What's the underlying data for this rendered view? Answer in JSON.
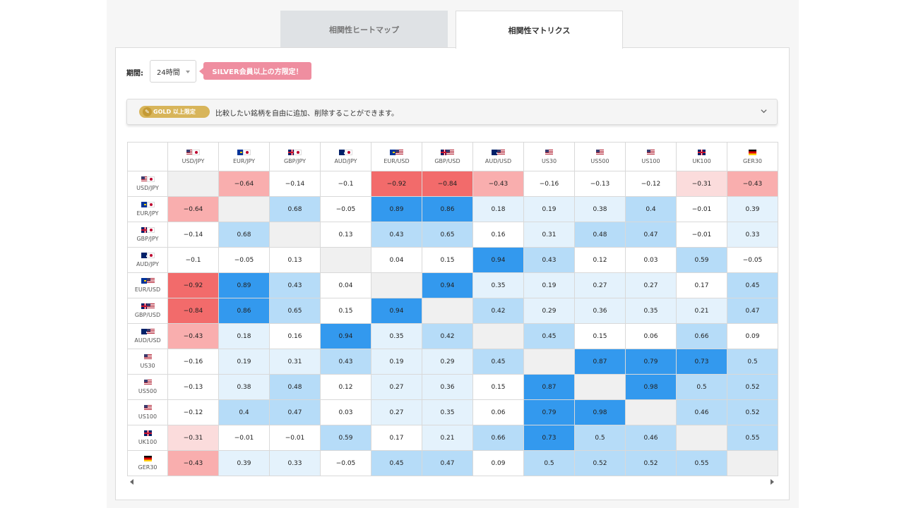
{
  "tabs": {
    "heatmap": "相関性ヒートマップ",
    "matrix": "相関性マトリクス"
  },
  "period": {
    "label": "期間:",
    "value": "24時間"
  },
  "silver_notice": "SILVER会員以上の方限定！",
  "gold": {
    "badge": "GOLD 以上限定",
    "text": "比較したい銘柄を自由に追加、削除することができます。"
  },
  "colors": {
    "strong_negative": "#f26b6b",
    "mid_negative": "#f9aeae",
    "weak_negative": "#fbdcdc",
    "strong_positive": "#3399ee",
    "mid_positive": "#b6dcf8",
    "weak_positive": "#e4f2fc",
    "diagonal": "#f0f0f0"
  },
  "matrix": {
    "symbols": [
      {
        "label": "USD/JPY",
        "flags": [
          "us",
          "jp"
        ]
      },
      {
        "label": "EUR/JPY",
        "flags": [
          "eu",
          "jp"
        ]
      },
      {
        "label": "GBP/JPY",
        "flags": [
          "gb",
          "jp"
        ]
      },
      {
        "label": "AUD/JPY",
        "flags": [
          "au",
          "jp"
        ]
      },
      {
        "label": "EUR/USD",
        "flags": [
          "eu",
          "us"
        ]
      },
      {
        "label": "GBP/USD",
        "flags": [
          "gb",
          "us"
        ]
      },
      {
        "label": "AUD/USD",
        "flags": [
          "au",
          "us"
        ]
      },
      {
        "label": "US30",
        "flags": [
          "us"
        ]
      },
      {
        "label": "US500",
        "flags": [
          "us"
        ]
      },
      {
        "label": "US100",
        "flags": [
          "us"
        ]
      },
      {
        "label": "UK100",
        "flags": [
          "gb"
        ]
      },
      {
        "label": "GER30",
        "flags": [
          "de"
        ]
      }
    ],
    "values": [
      [
        null,
        "−0.64",
        "−0.14",
        "−0.1",
        "−0.92",
        "−0.84",
        "−0.43",
        "−0.16",
        "−0.13",
        "−0.12",
        "−0.31",
        "−0.43"
      ],
      [
        "−0.64",
        null,
        "0.68",
        "−0.05",
        "0.89",
        "0.86",
        "0.18",
        "0.19",
        "0.38",
        "0.4",
        "−0.01",
        "0.39"
      ],
      [
        "−0.14",
        "0.68",
        null,
        "0.13",
        "0.43",
        "0.65",
        "0.16",
        "0.31",
        "0.48",
        "0.47",
        "−0.01",
        "0.33"
      ],
      [
        "−0.1",
        "−0.05",
        "0.13",
        null,
        "0.04",
        "0.15",
        "0.94",
        "0.43",
        "0.12",
        "0.03",
        "0.59",
        "−0.05"
      ],
      [
        "−0.92",
        "0.89",
        "0.43",
        "0.04",
        null,
        "0.94",
        "0.35",
        "0.19",
        "0.27",
        "0.27",
        "0.17",
        "0.45"
      ],
      [
        "−0.84",
        "0.86",
        "0.65",
        "0.15",
        "0.94",
        null,
        "0.42",
        "0.29",
        "0.36",
        "0.35",
        "0.21",
        "0.47"
      ],
      [
        "−0.43",
        "0.18",
        "0.16",
        "0.94",
        "0.35",
        "0.42",
        null,
        "0.45",
        "0.15",
        "0.06",
        "0.66",
        "0.09"
      ],
      [
        "−0.16",
        "0.19",
        "0.31",
        "0.43",
        "0.19",
        "0.29",
        "0.45",
        null,
        "0.87",
        "0.79",
        "0.73",
        "0.5"
      ],
      [
        "−0.13",
        "0.38",
        "0.48",
        "0.12",
        "0.27",
        "0.36",
        "0.15",
        "0.87",
        null,
        "0.98",
        "0.5",
        "0.52"
      ],
      [
        "−0.12",
        "0.4",
        "0.47",
        "0.03",
        "0.27",
        "0.35",
        "0.06",
        "0.79",
        "0.98",
        null,
        "0.46",
        "0.52"
      ],
      [
        "−0.31",
        "−0.01",
        "−0.01",
        "0.59",
        "0.17",
        "0.21",
        "0.66",
        "0.73",
        "0.5",
        "0.46",
        null,
        "0.55"
      ],
      [
        "−0.43",
        "0.39",
        "0.33",
        "−0.05",
        "0.45",
        "0.47",
        "0.09",
        "0.5",
        "0.52",
        "0.52",
        "0.55",
        null
      ]
    ]
  }
}
